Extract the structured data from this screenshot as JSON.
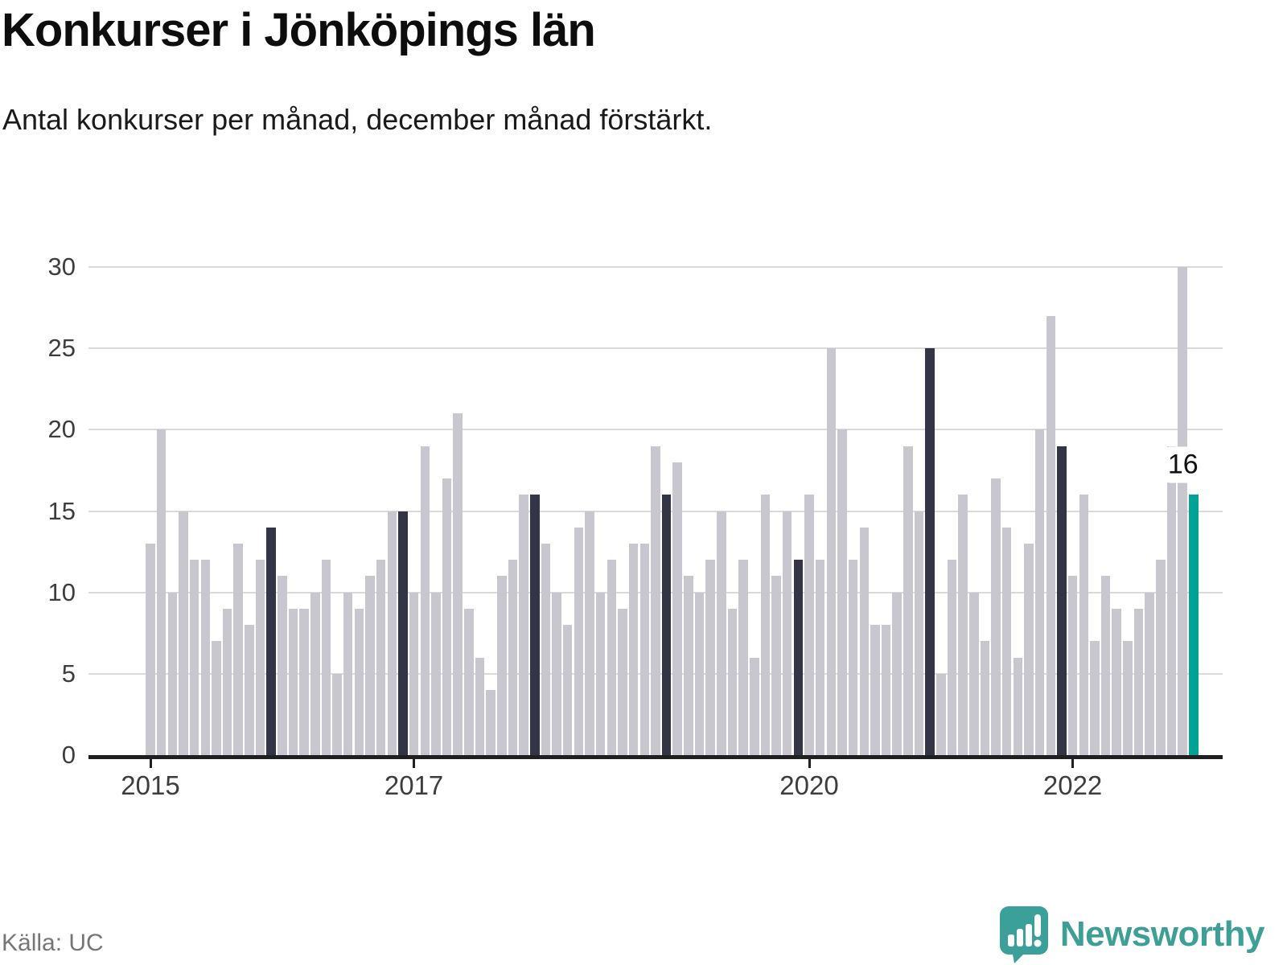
{
  "header": {
    "title": "Konkurser i Jönköpings län",
    "subtitle": "Antal konkurser per månad, december månad förstärkt."
  },
  "annotation": {
    "latest_value_label": "16"
  },
  "footer": {
    "source_label": "Källa: UC",
    "brand": "Newsworthy"
  },
  "chart_data": {
    "type": "bar",
    "title": "Konkurser i Jönköpings län",
    "subtitle": "Antal konkurser per månad, december månad förstärkt.",
    "unit": "konkurser per månad",
    "start_year": 2015,
    "start_month": 1,
    "values": [
      13,
      20,
      10,
      15,
      12,
      12,
      7,
      9,
      13,
      8,
      12,
      14,
      11,
      9,
      9,
      10,
      12,
      5,
      10,
      9,
      11,
      12,
      15,
      15,
      10,
      19,
      10,
      17,
      21,
      9,
      6,
      4,
      11,
      12,
      16,
      16,
      13,
      10,
      8,
      14,
      15,
      10,
      12,
      9,
      13,
      13,
      19,
      16,
      18,
      11,
      10,
      12,
      15,
      9,
      12,
      6,
      16,
      11,
      15,
      12,
      16,
      12,
      25,
      20,
      12,
      14,
      8,
      8,
      10,
      19,
      15,
      25,
      5,
      12,
      16,
      10,
      7,
      17,
      14,
      6,
      13,
      20,
      27,
      19,
      11,
      16,
      7,
      11,
      9,
      7,
      9,
      10,
      12,
      19,
      30,
      16
    ],
    "highlight_rule": "december-months-darkened, latest-month-teal-with-data-label",
    "latest_value": 16,
    "yticks": [
      0,
      5,
      10,
      15,
      20,
      25,
      30
    ],
    "ylim": [
      0,
      30
    ],
    "x_tick_labels": [
      "2015",
      "2017",
      "2020",
      "2022"
    ],
    "x_tick_years": [
      2015,
      2017,
      2020,
      2022
    ],
    "grid": "horizontal",
    "legend": "none",
    "colors": {
      "bar_default": "#c8c7d0",
      "bar_december": "#343447",
      "bar_latest": "#00a296",
      "gridline": "#dadada",
      "axis": "#1f1f1f",
      "tick_label": "#3d3d3d"
    }
  }
}
